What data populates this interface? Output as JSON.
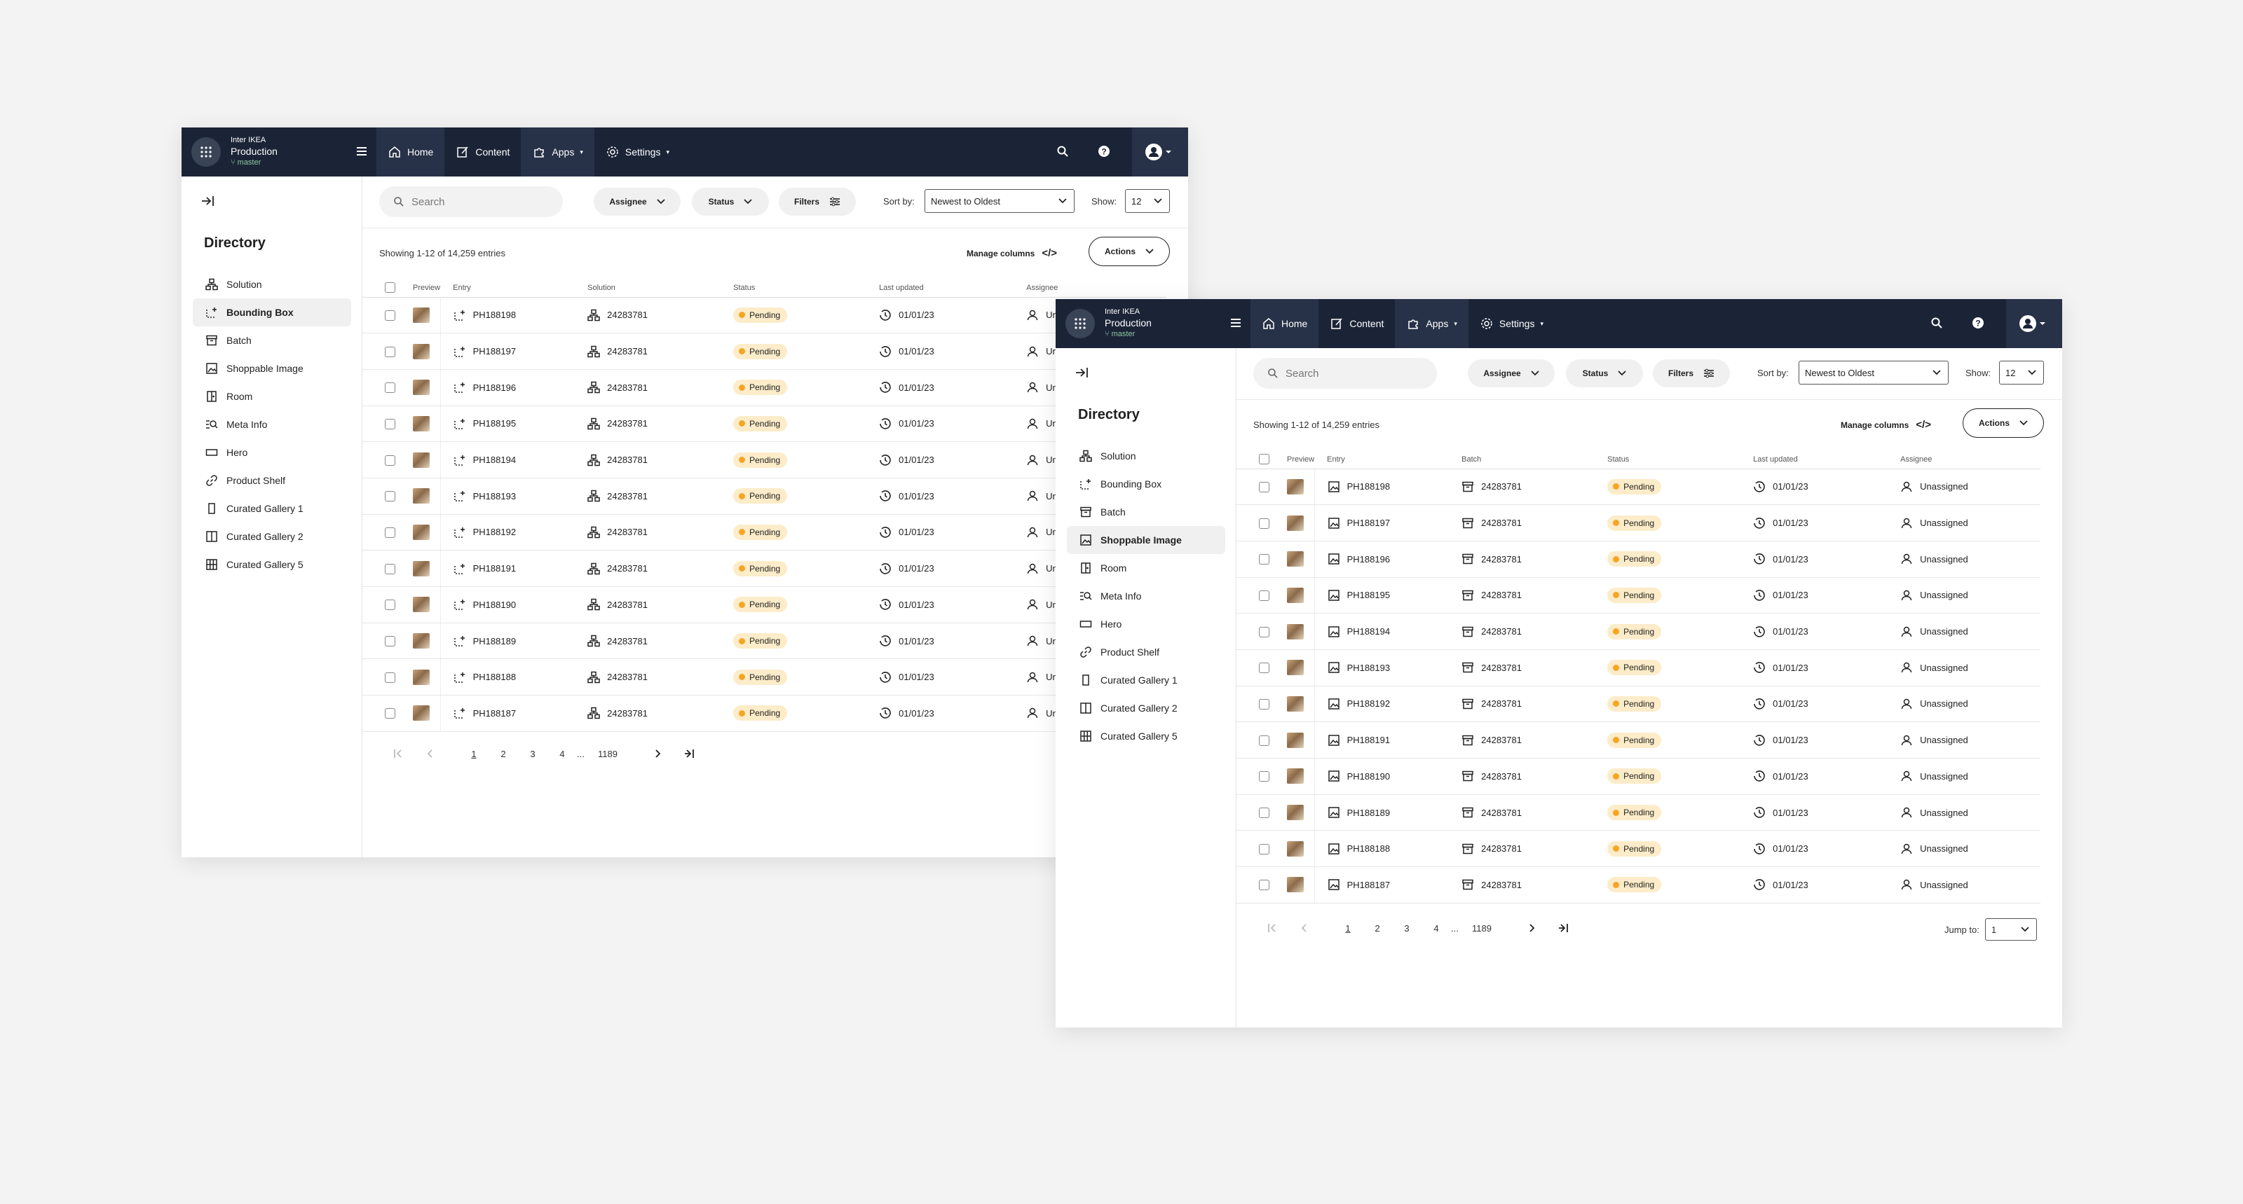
{
  "header": {
    "org": "Inter IKEA",
    "env": "Production",
    "branch": "master",
    "nav": [
      {
        "label": "Home",
        "icon": "home-icon"
      },
      {
        "label": "Content",
        "icon": "edit-icon"
      },
      {
        "label": "Apps",
        "icon": "puzzle-icon"
      },
      {
        "label": "Settings",
        "icon": "gear-icon"
      }
    ]
  },
  "sidebar": {
    "title": "Directory",
    "items": [
      {
        "label": "Solution",
        "icon": "hierarchy-icon"
      },
      {
        "label": "Bounding Box",
        "icon": "bounding-box-icon"
      },
      {
        "label": "Batch",
        "icon": "archive-icon"
      },
      {
        "label": "Shoppable Image",
        "icon": "image-icon"
      },
      {
        "label": "Room",
        "icon": "door-icon"
      },
      {
        "label": "Meta Info",
        "icon": "meta-search-icon"
      },
      {
        "label": "Hero",
        "icon": "rectangle-icon"
      },
      {
        "label": "Product Shelf",
        "icon": "link-icon"
      },
      {
        "label": "Curated Gallery 1",
        "icon": "portrait-icon"
      },
      {
        "label": "Curated Gallery 2",
        "icon": "split-panel-icon"
      },
      {
        "label": "Curated Gallery 5",
        "icon": "grid-icon"
      }
    ]
  },
  "toolbar": {
    "search_placeholder": "Search",
    "assignee": "Assignee",
    "status": "Status",
    "filters": "Filters",
    "sort_label": "Sort by:",
    "sort_value": "Newest to Oldest",
    "show_label": "Show:",
    "show_value": "12"
  },
  "summary": "Showing 1-12 of 14,259 entries",
  "manage_columns": "Manage columns",
  "actions": "Actions",
  "window1": {
    "columns": [
      "Preview",
      "Entry",
      "Solution",
      "Status",
      "Last updated",
      "Assignee"
    ]
  },
  "window2": {
    "columns": [
      "Preview",
      "Entry",
      "Batch",
      "Status",
      "Last updated",
      "Assignee"
    ]
  },
  "rows": [
    {
      "entry": "PH188198",
      "ref": "24283781",
      "status": "Pending",
      "updated": "01/01/23",
      "assignee": "Unassigned"
    },
    {
      "entry": "PH188197",
      "ref": "24283781",
      "status": "Pending",
      "updated": "01/01/23",
      "assignee": "Unassigned"
    },
    {
      "entry": "PH188196",
      "ref": "24283781",
      "status": "Pending",
      "updated": "01/01/23",
      "assignee": "Unassigned"
    },
    {
      "entry": "PH188195",
      "ref": "24283781",
      "status": "Pending",
      "updated": "01/01/23",
      "assignee": "Unassigned"
    },
    {
      "entry": "PH188194",
      "ref": "24283781",
      "status": "Pending",
      "updated": "01/01/23",
      "assignee": "Unassigned"
    },
    {
      "entry": "PH188193",
      "ref": "24283781",
      "status": "Pending",
      "updated": "01/01/23",
      "assignee": "Unassigned"
    },
    {
      "entry": "PH188192",
      "ref": "24283781",
      "status": "Pending",
      "updated": "01/01/23",
      "assignee": "Unassigned"
    },
    {
      "entry": "PH188191",
      "ref": "24283781",
      "status": "Pending",
      "updated": "01/01/23",
      "assignee": "Unassigned"
    },
    {
      "entry": "PH188190",
      "ref": "24283781",
      "status": "Pending",
      "updated": "01/01/23",
      "assignee": "Unassigned"
    },
    {
      "entry": "PH188189",
      "ref": "24283781",
      "status": "Pending",
      "updated": "01/01/23",
      "assignee": "Unassigned"
    },
    {
      "entry": "PH188188",
      "ref": "24283781",
      "status": "Pending",
      "updated": "01/01/23",
      "assignee": "Unassigned"
    },
    {
      "entry": "PH188187",
      "ref": "24283781",
      "status": "Pending",
      "updated": "01/01/23",
      "assignee": "Unassigned"
    }
  ],
  "pagination": {
    "pages": [
      "1",
      "2",
      "3",
      "4"
    ],
    "ellipsis": "...",
    "last": "1189",
    "jump_label": "Jump to:",
    "jump_value": "1"
  },
  "colors": {
    "header_bg": "#1b2437",
    "pending_bg": "#fcecc9",
    "pending_dot": "#f5a623"
  }
}
